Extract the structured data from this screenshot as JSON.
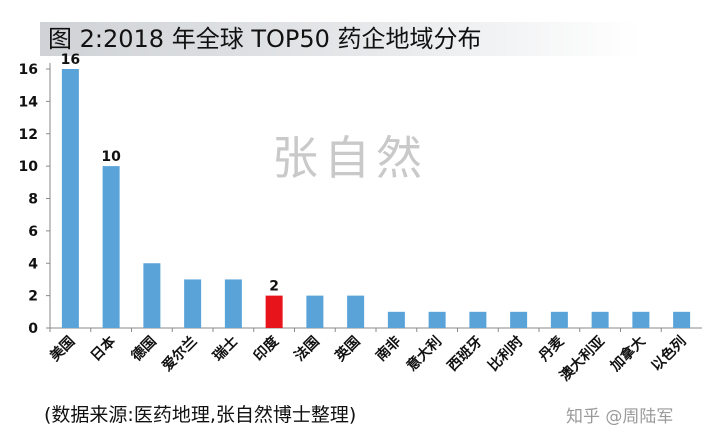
{
  "title": "图 2:2018 年全球 TOP50 药企地域分布",
  "watermark_center": "张自然",
  "source_note": "(数据来源:医药地理,张自然博士整理)",
  "watermark_corner": "知乎 @周陆军",
  "chart_data": {
    "type": "bar",
    "categories": [
      "美国",
      "日本",
      "德国",
      "爱尔兰",
      "瑞士",
      "印度",
      "法国",
      "英国",
      "南非",
      "意大利",
      "西班牙",
      "比利时",
      "丹麦",
      "澳大利亚",
      "加拿大",
      "以色列"
    ],
    "values": [
      16,
      10,
      4,
      3,
      3,
      2,
      2,
      2,
      1,
      1,
      1,
      1,
      1,
      1,
      1,
      1
    ],
    "data_labels": {
      "0": "16",
      "1": "10",
      "5": "2"
    },
    "highlight_index": 5,
    "bar_color": "#5aa3d9",
    "highlight_color": "#e8141c",
    "ylim": [
      0,
      16
    ],
    "yticks": [
      0,
      2,
      4,
      6,
      8,
      10,
      12,
      14,
      16
    ],
    "grid": false
  }
}
